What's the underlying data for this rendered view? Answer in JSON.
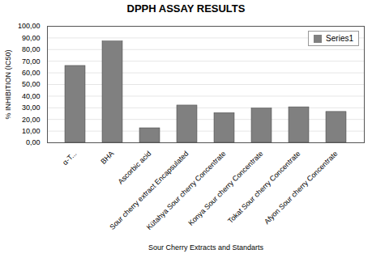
{
  "chart_data": {
    "type": "bar",
    "title": "DPPH ASSAY RESULTS",
    "xlabel": "Sour Cherry Extracts and Standarts",
    "ylabel": "% INHIBITION (IC50)",
    "categories": [
      "α-T...",
      "BHA",
      "Ascorbic acid",
      "Sour cherry extract Encapsulated",
      "Kütahya Sour cherry Concentrate",
      "Konya Sour cherry Concentrate",
      "Tokat Sour cherry Concentrate",
      "Afyon Sour cherry Concentrate"
    ],
    "series": [
      {
        "name": "Series1",
        "color": "#808080",
        "values": [
          66.0,
          87.0,
          12.5,
          32.0,
          25.5,
          29.5,
          30.5,
          26.5
        ]
      }
    ],
    "ylim": [
      0,
      100
    ],
    "yticks": [
      {
        "value": 0,
        "label": "0,00"
      },
      {
        "value": 10,
        "label": "10,00"
      },
      {
        "value": 20,
        "label": "20,00"
      },
      {
        "value": 30,
        "label": "30,00"
      },
      {
        "value": 40,
        "label": "40,00"
      },
      {
        "value": 50,
        "label": "50,00"
      },
      {
        "value": 60,
        "label": "60,00"
      },
      {
        "value": 70,
        "label": "70,00"
      },
      {
        "value": 80,
        "label": "80,00"
      },
      {
        "value": 90,
        "label": "90,00"
      },
      {
        "value": 100,
        "label": "100,00"
      }
    ],
    "grid": true,
    "legend": "upper right"
  }
}
